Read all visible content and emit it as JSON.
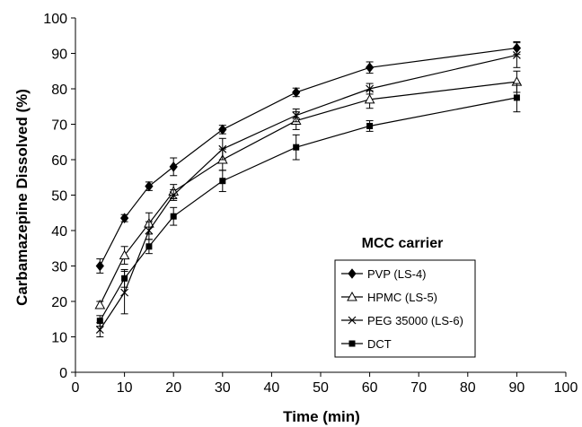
{
  "chart_data": {
    "type": "line",
    "xlabel": "Time (min)",
    "ylabel": "Carbamazepine Dissolved (%)",
    "xlim": [
      0,
      100
    ],
    "ylim": [
      0,
      100
    ],
    "xticks": [
      0,
      10,
      20,
      30,
      40,
      50,
      60,
      70,
      80,
      90,
      100
    ],
    "yticks": [
      0,
      10,
      20,
      30,
      40,
      50,
      60,
      70,
      80,
      90,
      100
    ],
    "grid": false,
    "legend": {
      "title": "MCC carrier",
      "placement": "bottom-right"
    },
    "x": [
      5,
      10,
      15,
      20,
      30,
      45,
      60,
      90
    ],
    "series": [
      {
        "name": "PVP (LS-4)",
        "marker": "diamond",
        "values": [
          30,
          43.5,
          52.5,
          58,
          68.5,
          79,
          86,
          91.5
        ],
        "errors": [
          2,
          1,
          1.2,
          2.5,
          1.2,
          1.2,
          1.6,
          1.8
        ]
      },
      {
        "name": "HPMC (LS-5)",
        "marker": "triangle",
        "values": [
          19,
          33,
          42,
          51,
          60,
          71,
          77,
          82
        ],
        "errors": [
          1,
          2.5,
          3,
          2,
          3,
          2.5,
          2.5,
          3
        ]
      },
      {
        "name": "PEG 35000 (LS-6)",
        "marker": "x",
        "values": [
          12,
          22.5,
          40,
          50,
          63,
          72.5,
          80,
          89.5
        ],
        "errors": [
          2,
          6,
          2.5,
          1.5,
          3,
          1.8,
          1.5,
          3.5
        ]
      },
      {
        "name": "DCT",
        "marker": "square",
        "values": [
          14.5,
          26.5,
          35.5,
          44,
          54,
          63.5,
          69.5,
          77.5
        ],
        "errors": [
          1.5,
          2.5,
          2,
          2.5,
          3,
          3.5,
          1.5,
          4
        ]
      }
    ]
  }
}
